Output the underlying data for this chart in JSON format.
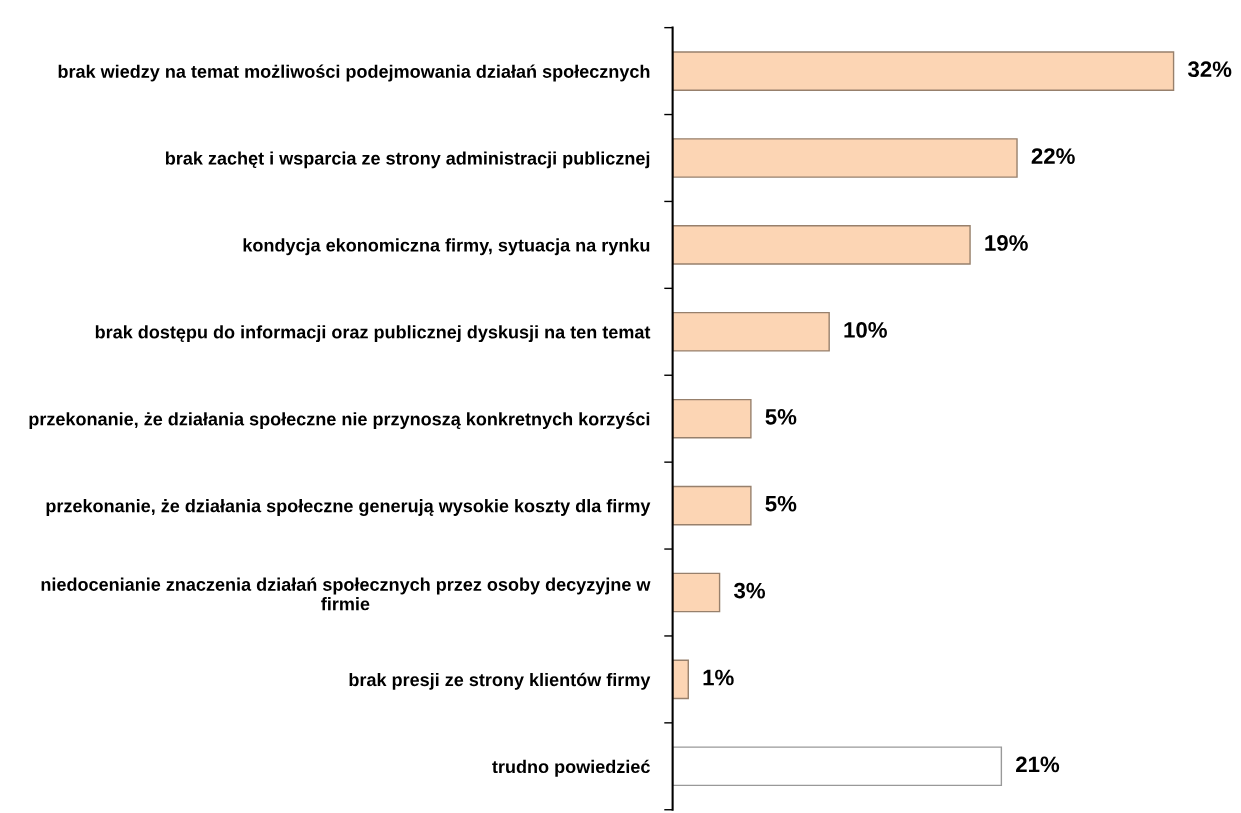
{
  "chart_data": {
    "type": "bar",
    "orientation": "horizontal",
    "categories": [
      "brak wiedzy na temat możliwości podejmowania działań społecznych",
      "brak zachęt i wsparcia ze strony administracji publicznej",
      "kondycja ekonomiczna firmy, sytuacja na rynku",
      "brak dostępu do informacji oraz publicznej dyskusji na ten temat",
      "przekonanie, że działania społeczne nie przynoszą konkretnych korzyści",
      "przekonanie, że działania społeczne generują wysokie koszty dla firmy",
      "niedocenianie znaczenia działań społecznych przez osoby decyzyjne w\nfirmie",
      "brak presji ze strony klientów firmy",
      "trudno powiedzieć"
    ],
    "values": [
      32,
      22,
      19,
      10,
      5,
      5,
      3,
      1,
      21
    ],
    "colors": [
      "#fcd5b4",
      "#fcd5b4",
      "#fcd5b4",
      "#fcd5b4",
      "#fcd5b4",
      "#fcd5b4",
      "#fcd5b4",
      "#fcd5b4",
      "#ffffff"
    ],
    "value_labels": [
      "32%",
      "22%",
      "19%",
      "10%",
      "5%",
      "5%",
      "3%",
      "1%",
      "21%"
    ],
    "tick_labels": "y"
  }
}
